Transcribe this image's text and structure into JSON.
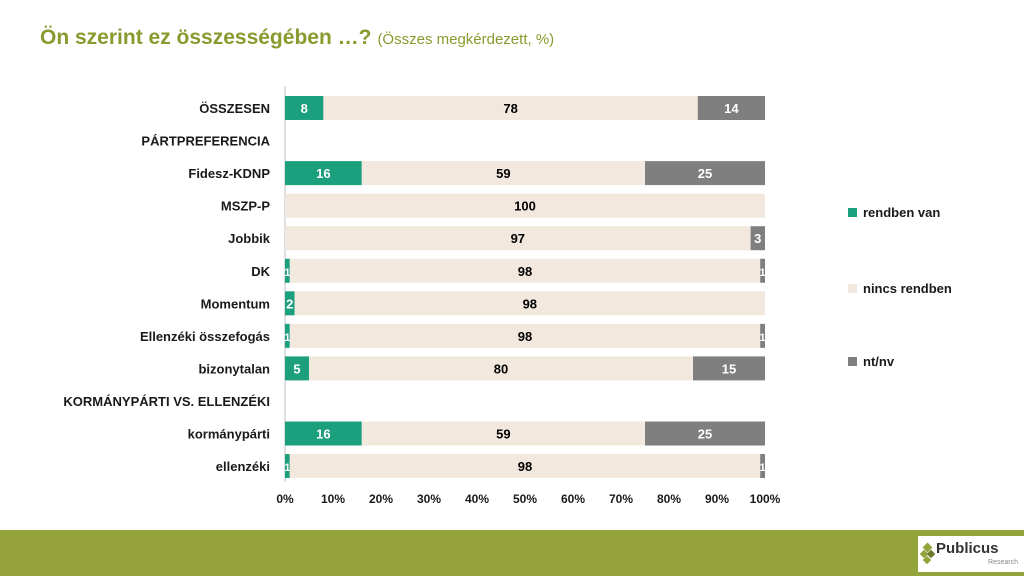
{
  "title": {
    "main": "Ön szerint ez összességében …?",
    "sub": "(Összes megkérdezett, %)"
  },
  "colors": {
    "rendben": "#1c9f7d",
    "nincs": "#f2e8de",
    "ntnv": "#7f7f7f"
  },
  "chart_data": {
    "type": "bar",
    "orientation": "horizontal",
    "stacked": true,
    "title": "Ön szerint ez összességében …?",
    "subtitle": "(Összes megkérdezett, %)",
    "categories": [
      "ÖSSZESEN",
      "PÁRTPREFERENCIA",
      "Fidesz-KDNP",
      "MSZP-P",
      "Jobbik",
      "DK",
      "Momentum",
      "Ellenzéki összefogás",
      "bizonytalan",
      "KORMÁNYPÁRTI VS. ELLENZÉKI",
      "kormánypárti",
      "ellenzéki"
    ],
    "series": [
      {
        "name": "rendben van",
        "values": [
          8,
          null,
          16,
          null,
          null,
          1,
          2,
          1,
          5,
          null,
          16,
          1
        ]
      },
      {
        "name": "nincs rendben",
        "values": [
          78,
          null,
          59,
          100,
          97,
          98,
          98,
          98,
          80,
          null,
          59,
          98
        ]
      },
      {
        "name": "nt/nv",
        "values": [
          14,
          null,
          25,
          null,
          3,
          1,
          null,
          1,
          15,
          null,
          25,
          1
        ]
      }
    ],
    "xticks": [
      "0%",
      "10%",
      "20%",
      "30%",
      "40%",
      "50%",
      "60%",
      "70%",
      "80%",
      "90%",
      "100%"
    ],
    "xlim": [
      0,
      100
    ],
    "legend_position": "right"
  },
  "logo": {
    "name": "Publicus",
    "tagline": "Research"
  }
}
